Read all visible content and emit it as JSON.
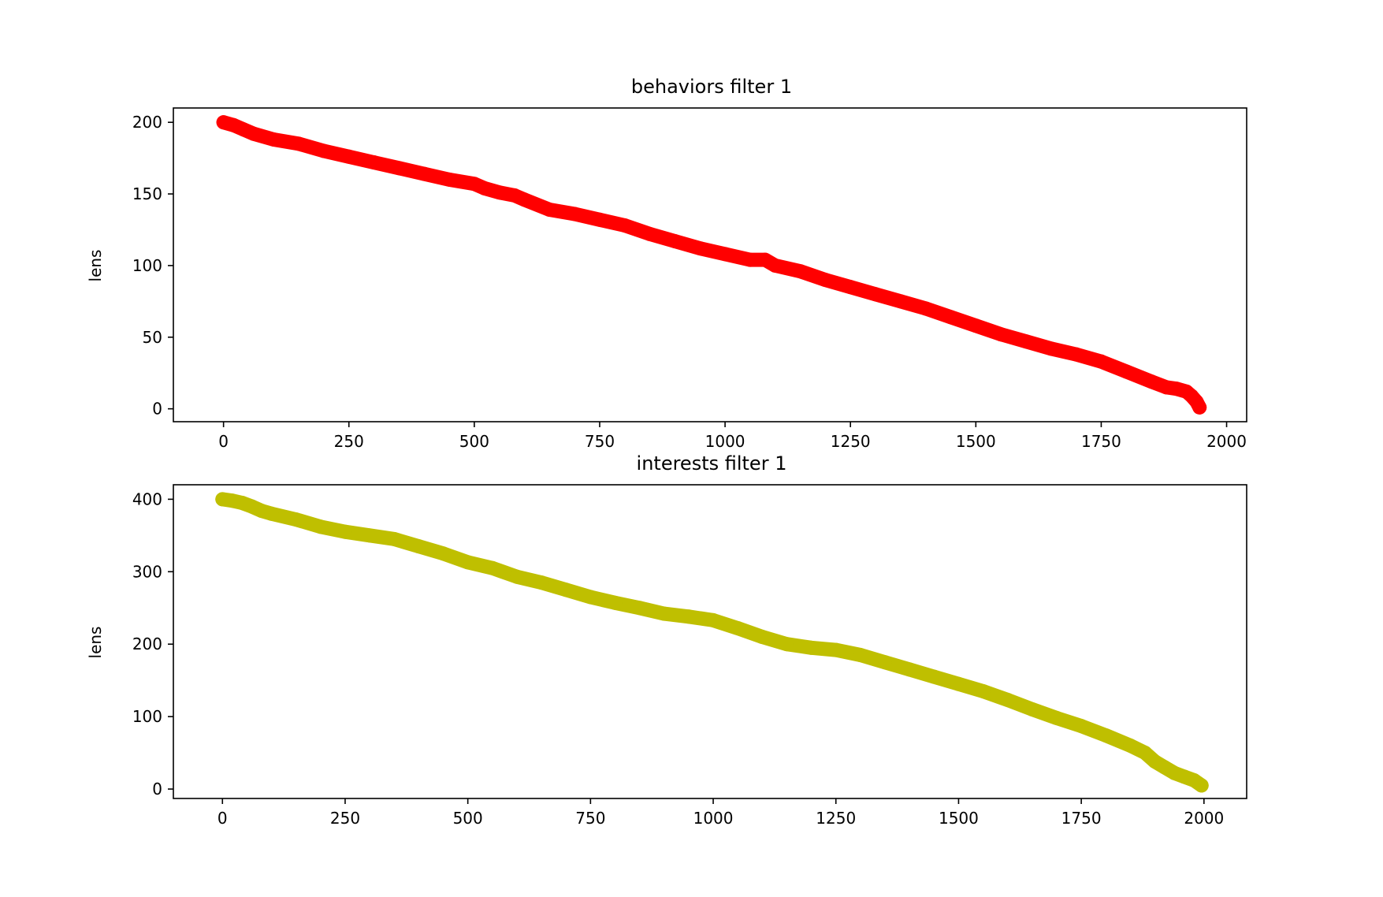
{
  "chart_data": [
    {
      "type": "scatter",
      "title": "behaviors filter 1",
      "xlabel": "",
      "ylabel": "lens",
      "xlim": [
        -100,
        2040
      ],
      "ylim": [
        -9,
        210
      ],
      "xticks": [
        0,
        250,
        500,
        750,
        1000,
        1250,
        1500,
        1750,
        2000
      ],
      "yticks": [
        0,
        50,
        100,
        150,
        200
      ],
      "color": "#ff0000",
      "grid": false,
      "series": [
        {
          "x": [
            0,
            20,
            40,
            60,
            100,
            150,
            200,
            250,
            300,
            350,
            400,
            450,
            500,
            520,
            550,
            580,
            600,
            650,
            700,
            750,
            800,
            850,
            900,
            950,
            1000,
            1050,
            1080,
            1100,
            1150,
            1200,
            1250,
            1300,
            1350,
            1400,
            1450,
            1500,
            1550,
            1600,
            1650,
            1700,
            1750,
            1800,
            1850,
            1880,
            1900,
            1920,
            1930,
            1940,
            1946
          ],
          "y": [
            200,
            198,
            195,
            192,
            188,
            185,
            180,
            176,
            172,
            168,
            164,
            160,
            157,
            154,
            151,
            149,
            146,
            139,
            136,
            132,
            128,
            122,
            117,
            112,
            108,
            104,
            104,
            100,
            96,
            90,
            85,
            80,
            75,
            70,
            64,
            58,
            52,
            47,
            42,
            38,
            33,
            26,
            19,
            15,
            14,
            12,
            9,
            5,
            1
          ]
        }
      ]
    },
    {
      "type": "scatter",
      "title": "interests filter 1",
      "xlabel": "",
      "ylabel": "lens",
      "xlim": [
        -100,
        2087
      ],
      "ylim": [
        -13,
        420
      ],
      "xticks": [
        0,
        250,
        500,
        750,
        1000,
        1250,
        1500,
        1750,
        2000
      ],
      "yticks": [
        0,
        100,
        200,
        300,
        400
      ],
      "color": "#bfbf00",
      "grid": false,
      "series": [
        {
          "x": [
            0,
            20,
            40,
            60,
            80,
            100,
            150,
            200,
            250,
            300,
            350,
            400,
            450,
            500,
            550,
            600,
            650,
            700,
            750,
            800,
            850,
            900,
            950,
            1000,
            1050,
            1100,
            1150,
            1200,
            1250,
            1300,
            1350,
            1400,
            1450,
            1500,
            1550,
            1600,
            1650,
            1700,
            1750,
            1800,
            1850,
            1880,
            1900,
            1920,
            1940,
            1960,
            1980,
            1995
          ],
          "y": [
            400,
            398,
            395,
            390,
            384,
            380,
            372,
            362,
            355,
            350,
            345,
            335,
            325,
            313,
            305,
            293,
            285,
            275,
            265,
            257,
            250,
            242,
            238,
            233,
            222,
            210,
            200,
            195,
            192,
            185,
            175,
            165,
            155,
            145,
            135,
            123,
            110,
            98,
            87,
            74,
            60,
            50,
            38,
            30,
            22,
            17,
            12,
            5
          ]
        }
      ]
    }
  ]
}
